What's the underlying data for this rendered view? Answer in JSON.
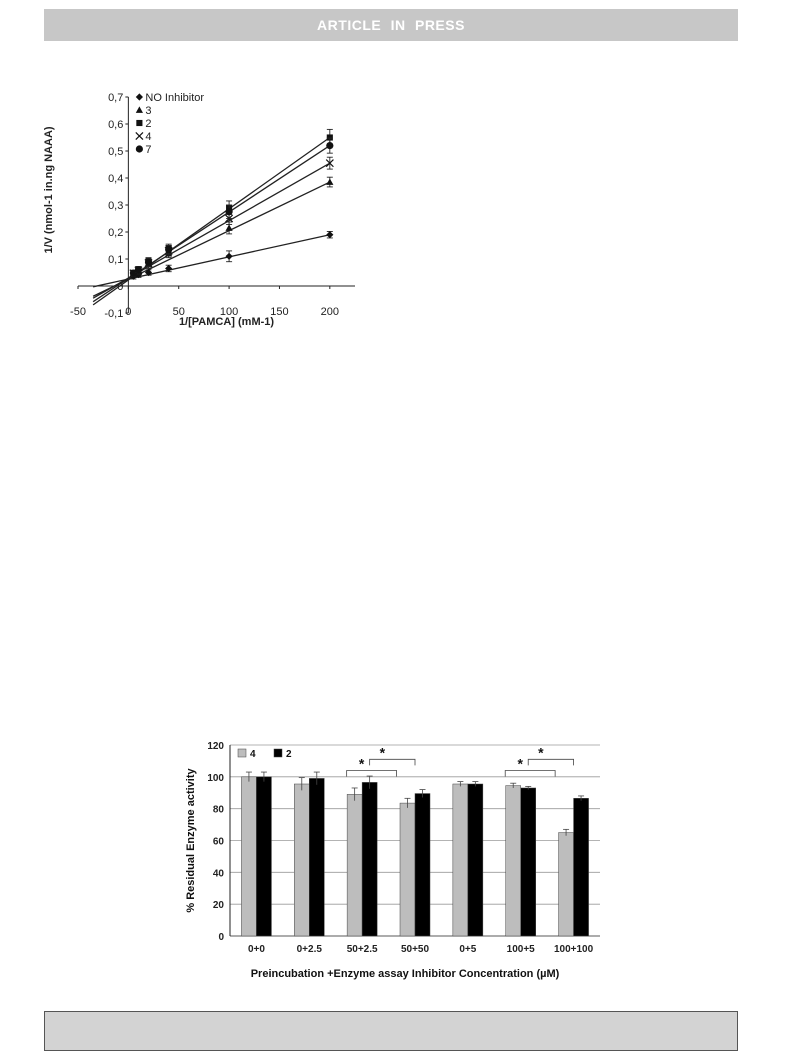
{
  "header": {
    "banner": "ARTICLE IN PRESS"
  },
  "figure1": {
    "chart_data": {
      "type": "line",
      "xlabel": "1/[PAMCA] (mM-1)",
      "ylabel": "1/V (nmol-1 in.ng NAAA)",
      "xlim": [
        -50,
        225
      ],
      "ylim": [
        -0.1,
        0.7
      ],
      "x_ticks": [
        "-50",
        "0",
        "50",
        "100",
        "150",
        "200"
      ],
      "y_ticks": [
        "-0,1",
        "0",
        "0,1",
        "0,2",
        "0,3",
        "0,4",
        "0,5",
        "0,6",
        "0,7"
      ],
      "legend_position": "top-left",
      "x": [
        5,
        10,
        20,
        40,
        100,
        200
      ],
      "series": [
        {
          "name": "NO Inhibitor",
          "marker": "diamond",
          "values": [
            0.036,
            0.042,
            0.05,
            0.065,
            0.11,
            0.19
          ],
          "errors": [
            0.01,
            0.01,
            0.01,
            0.012,
            0.02,
            0.012
          ]
        },
        {
          "name": "3",
          "marker": "triangle",
          "values": [
            0.045,
            0.055,
            0.08,
            0.12,
            0.215,
            0.385
          ],
          "errors": [
            0.01,
            0.01,
            0.015,
            0.015,
            0.022,
            0.018
          ]
        },
        {
          "name": "2",
          "marker": "square",
          "values": [
            0.048,
            0.062,
            0.09,
            0.14,
            0.29,
            0.55
          ],
          "errors": [
            0.01,
            0.01,
            0.015,
            0.015,
            0.025,
            0.03
          ]
        },
        {
          "name": "4",
          "marker": "cross",
          "values": [
            0.047,
            0.058,
            0.085,
            0.13,
            0.25,
            0.455
          ],
          "errors": [
            0.01,
            0.01,
            0.015,
            0.015,
            0.022,
            0.022
          ]
        },
        {
          "name": "7",
          "marker": "circle",
          "values": [
            0.048,
            0.06,
            0.088,
            0.135,
            0.275,
            0.52
          ],
          "errors": [
            0.01,
            0.01,
            0.015,
            0.015,
            0.025,
            0.028
          ]
        }
      ],
      "fit_lines": [
        {
          "series": "NO Inhibitor",
          "x": [
            -35,
            200
          ],
          "y": [
            -0.003,
            0.19
          ]
        },
        {
          "series": "3",
          "x": [
            -35,
            200
          ],
          "y": [
            -0.038,
            0.385
          ]
        },
        {
          "series": "2",
          "x": [
            -35,
            200
          ],
          "y": [
            -0.07,
            0.55
          ]
        },
        {
          "series": "4",
          "x": [
            -35,
            200
          ],
          "y": [
            -0.045,
            0.455
          ]
        },
        {
          "series": "7",
          "x": [
            -35,
            200
          ],
          "y": [
            -0.058,
            0.52
          ]
        }
      ]
    }
  },
  "figure2": {
    "chart_data": {
      "type": "bar",
      "xlabel": "Preincubation +Enzyme assay  Inhibitor Concentration (µM)",
      "ylabel": "% Residual Enzyme activity",
      "ylim": [
        0,
        120
      ],
      "y_ticks": [
        "0",
        "20",
        "40",
        "60",
        "80",
        "100",
        "120"
      ],
      "grid": true,
      "legend_position": "top-left",
      "categories": [
        "0+0",
        "0+2.5",
        "50+2.5",
        "50+50",
        "0+5",
        "100+5",
        "100+100"
      ],
      "series": [
        {
          "name": "4",
          "color": "#bdbdbd",
          "values": [
            100,
            95.5,
            89,
            83.5,
            95.5,
            94.5,
            65
          ],
          "errors": [
            3,
            4,
            4,
            3,
            1.5,
            1.5,
            2
          ]
        },
        {
          "name": "2",
          "color": "#000000",
          "values": [
            100,
            99,
            96.5,
            89.5,
            95.5,
            93,
            86.5
          ],
          "errors": [
            3,
            4,
            4,
            2.5,
            1.5,
            1,
            1.5
          ]
        }
      ],
      "significance": [
        {
          "label": "*",
          "from": 2,
          "to": 2
        },
        {
          "label": "*",
          "from": 2,
          "to": 3
        },
        {
          "label": "*",
          "from": 5,
          "to": 5
        },
        {
          "label": "*",
          "from": 5,
          "to": 6
        }
      ]
    }
  }
}
